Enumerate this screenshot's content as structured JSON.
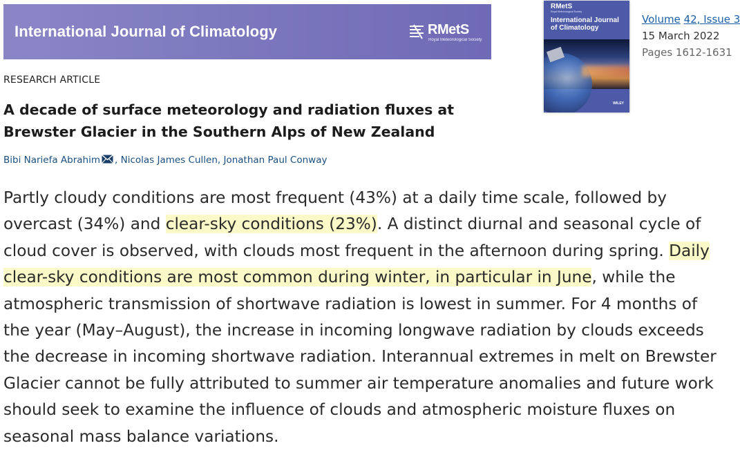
{
  "header": {
    "journal_title": "International Journal of Climatology",
    "logo_text": "RMetS",
    "logo_subtext": "Royal Meteorological Society"
  },
  "cover": {
    "logo_text": "RMetS",
    "logo_subtext": "Royal Meteorological Society",
    "title": "International Journal of Climatology",
    "publisher": "WILEY"
  },
  "issue": {
    "volume_label": "Volume",
    "volume_link": "42, Issue 3",
    "date": "15 March 2022",
    "pages": "Pages 1612-1631"
  },
  "article": {
    "type": "RESEARCH ARTICLE",
    "title_line1": "A decade of surface meteorology and radiation fluxes at",
    "title_line2": "Brewster Glacier in the Southern Alps of New Zealand",
    "authors": [
      "Bibi Nariefa Abrahim",
      "Nicolas James Cullen",
      "Jonathan Paul Conway"
    ],
    "author_separator": ", "
  },
  "abstract": {
    "l1": "Partly cloudy conditions are most frequent (43%) at a daily time scale, followed by",
    "l2_a": "overcast (34%) and ",
    "l2_hl": "clear-sky conditions (23%)",
    "l2_b": ". A distinct diurnal and seasonal cycle of",
    "l3_a": "cloud cover is observed, with clouds most frequent in the afternoon during spring. ",
    "l3_hl": "Daily",
    "l4_hl": "clear-sky conditions are most common during winter, in particular in June",
    "l4_b": ", while the",
    "l5": "atmospheric transmission of shortwave radiation is lowest in summer. For 4 months of",
    "l6": "the year (May–August), the increase in incoming longwave radiation by clouds exceeds",
    "l7": "the decrease in incoming shortwave radiation. Interannual extremes in melt on Brewster",
    "l8": "Glacier cannot be fully attributed to summer air temperature anomalies and future work",
    "l9": "should seek to examine the influence of clouds and atmospheric moisture fluxes on",
    "l10": "seasonal mass balance variations."
  },
  "colors": {
    "banner": "#7d79bf",
    "link": "#1a5fa8",
    "highlight": "#fcf9c8"
  }
}
